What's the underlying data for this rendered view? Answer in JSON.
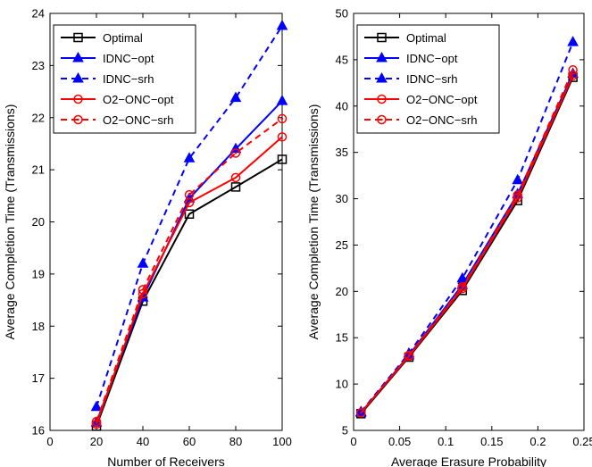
{
  "chart_data": [
    {
      "type": "line",
      "xlabel": "Number of Receivers",
      "ylabel": "Average Completion Time (Transmissions)",
      "xlim": [
        0,
        100
      ],
      "ylim": [
        16,
        24
      ],
      "xticks": [
        "0",
        "20",
        "40",
        "60",
        "80",
        "100"
      ],
      "yticks": [
        "16",
        "17",
        "18",
        "19",
        "20",
        "21",
        "22",
        "23",
        "24"
      ],
      "x": [
        20,
        40,
        60,
        80,
        100
      ],
      "legend_position": "top-left",
      "grid": false,
      "series": [
        {
          "name": "Optimal",
          "values": [
            16.08,
            18.48,
            20.15,
            20.67,
            21.2
          ],
          "color": "#000000",
          "marker": "square",
          "dash": "solid"
        },
        {
          "name": "IDNC−opt",
          "values": [
            16.15,
            18.55,
            20.45,
            21.4,
            22.32
          ],
          "color": "#0000ff",
          "marker": "triangle",
          "dash": "solid"
        },
        {
          "name": "IDNC−srh",
          "values": [
            16.45,
            19.2,
            21.22,
            22.38,
            23.76
          ],
          "color": "#0000ff",
          "marker": "triangle",
          "dash": "dashed"
        },
        {
          "name": "O2−ONC−opt",
          "values": [
            16.12,
            18.62,
            20.37,
            20.85,
            21.63
          ],
          "color": "#ff0000",
          "marker": "circle",
          "dash": "solid"
        },
        {
          "name": "O2−ONC−srh",
          "values": [
            16.17,
            18.7,
            20.52,
            21.32,
            21.98
          ],
          "color": "#ff0000",
          "marker": "circle-dot",
          "dash": "dashed"
        }
      ]
    },
    {
      "type": "line",
      "xlabel": "Average Erasure Probability",
      "ylabel": "Average Completion Time (Transmissions)",
      "xlim": [
        0,
        0.25
      ],
      "ylim": [
        5,
        50
      ],
      "xticks": [
        "0",
        "0.05",
        "0.1",
        "0.15",
        "0.2",
        "0.25"
      ],
      "yticks": [
        "5",
        "10",
        "15",
        "20",
        "25",
        "30",
        "35",
        "40",
        "45",
        "50"
      ],
      "x": [
        0.008,
        0.06,
        0.118,
        0.178,
        0.238
      ],
      "legend_position": "top-left",
      "grid": false,
      "series": [
        {
          "name": "Optimal",
          "values": [
            6.8,
            12.9,
            20.1,
            29.8,
            43.1
          ],
          "color": "#000000",
          "marker": "square",
          "dash": "solid"
        },
        {
          "name": "IDNC−opt",
          "values": [
            6.9,
            13.1,
            20.7,
            30.5,
            43.5
          ],
          "color": "#0000ff",
          "marker": "triangle",
          "dash": "solid"
        },
        {
          "name": "IDNC−srh",
          "values": [
            7.0,
            13.3,
            21.4,
            32.0,
            46.9
          ],
          "color": "#0000ff",
          "marker": "triangle",
          "dash": "dashed"
        },
        {
          "name": "O2−ONC−opt",
          "values": [
            6.9,
            13.0,
            20.3,
            30.1,
            43.3
          ],
          "color": "#ff0000",
          "marker": "circle",
          "dash": "solid"
        },
        {
          "name": "O2−ONC−srh",
          "values": [
            6.9,
            13.1,
            20.5,
            30.4,
            43.9
          ],
          "color": "#ff0000",
          "marker": "circle-dot",
          "dash": "dashed"
        }
      ]
    }
  ]
}
